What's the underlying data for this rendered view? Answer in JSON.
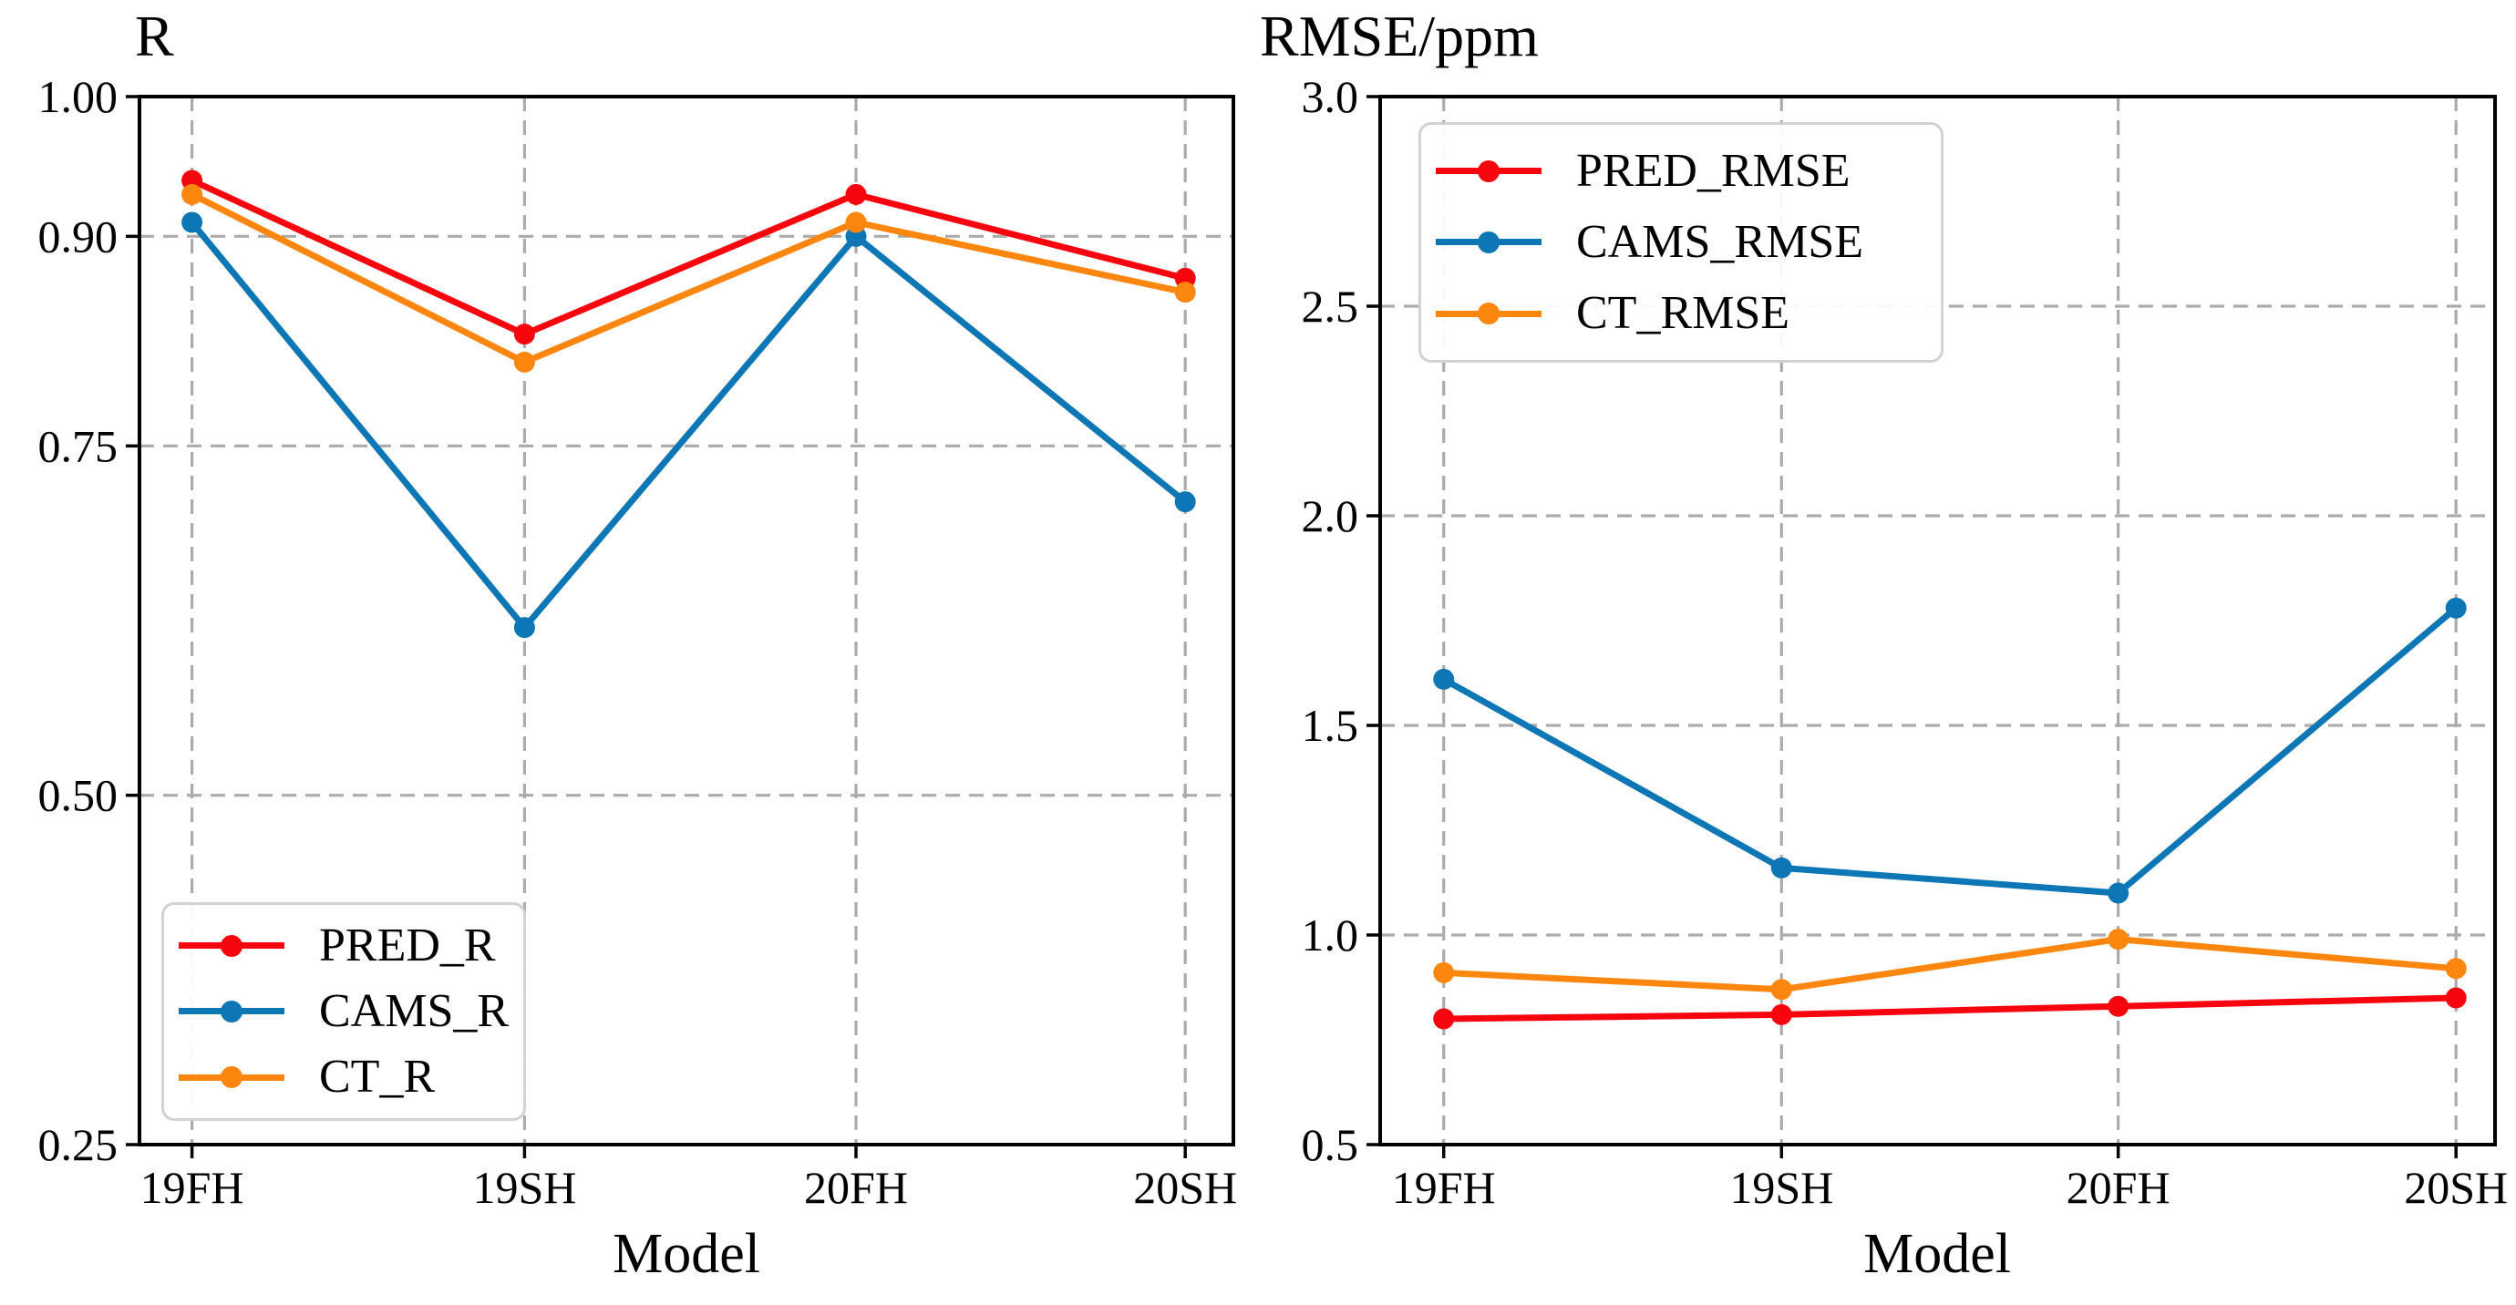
{
  "colors": {
    "background": "#ffffff",
    "axis": "#000000",
    "grid": "#ababab",
    "legend_border": "#d2d2d2",
    "red": "#f6050f",
    "blue": "#0d76b5",
    "orange": "#fd860f"
  },
  "chart_data": [
    {
      "type": "line",
      "title": "R",
      "xlabel": "Model",
      "categories": [
        "19FH",
        "19SH",
        "20FH",
        "20SH"
      ],
      "ylim": [
        0.25,
        1.0
      ],
      "yticks": [
        1.0,
        0.9,
        0.75,
        0.5,
        0.25
      ],
      "ytick_labels": [
        "1.00",
        "0.90",
        "0.75",
        "0.50",
        "0.25"
      ],
      "grid": true,
      "legend_position": "bottom-left",
      "series": [
        {
          "name": "PRED_R",
          "color": "#f6050f",
          "values": [
            0.94,
            0.83,
            0.93,
            0.87
          ]
        },
        {
          "name": "CAMS_R",
          "color": "#0d76b5",
          "values": [
            0.91,
            0.62,
            0.9,
            0.71
          ]
        },
        {
          "name": "CT_R",
          "color": "#fd860f",
          "values": [
            0.93,
            0.81,
            0.91,
            0.86
          ]
        }
      ]
    },
    {
      "type": "line",
      "title": "RMSE/ppm",
      "xlabel": "Model",
      "categories": [
        "19FH",
        "19SH",
        "20FH",
        "20SH"
      ],
      "ylim": [
        0.5,
        3.0
      ],
      "yticks": [
        3.0,
        2.5,
        2.0,
        1.5,
        1.0,
        0.5
      ],
      "ytick_labels": [
        "3.0",
        "2.5",
        "2.0",
        "1.5",
        "1.0",
        "0.5"
      ],
      "grid": true,
      "legend_position": "top-left",
      "series": [
        {
          "name": "PRED_RMSE",
          "color": "#f6050f",
          "values": [
            0.8,
            0.81,
            0.83,
            0.85
          ]
        },
        {
          "name": "CAMS_RMSE",
          "color": "#0d76b5",
          "values": [
            1.61,
            1.16,
            1.1,
            1.78
          ]
        },
        {
          "name": "CT_RMSE",
          "color": "#fd860f",
          "values": [
            0.91,
            0.87,
            0.99,
            0.92
          ]
        }
      ]
    }
  ]
}
